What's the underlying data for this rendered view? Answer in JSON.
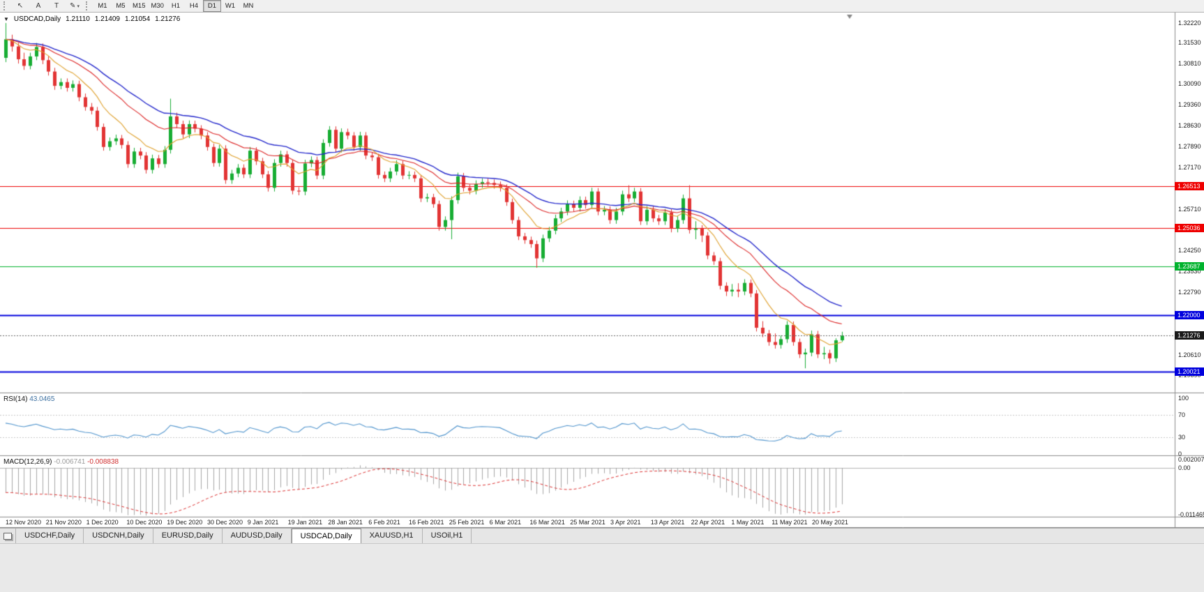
{
  "ui": {
    "collapse_glyph": "▼"
  },
  "toolbar": {
    "tools": [
      {
        "name": "cursor-tool",
        "glyph": "↖"
      },
      {
        "name": "text-label-tool",
        "glyph": "A"
      },
      {
        "name": "text-tool",
        "glyph": "T"
      },
      {
        "name": "drawing-tools",
        "glyph": "✎",
        "caret": "▾"
      }
    ],
    "timeframes": [
      "M1",
      "M5",
      "M15",
      "M30",
      "H1",
      "H4",
      "D1",
      "W1",
      "MN"
    ],
    "active_timeframe": "D1"
  },
  "chart": {
    "symbol_period": "USDCAD,Daily",
    "ohlc": {
      "open": "1.21110",
      "high": "1.21409",
      "low": "1.21054",
      "close": "1.21276"
    },
    "current_price": 1.21276,
    "price_axis_labels": [
      {
        "text": "1.32220",
        "price": 1.3222
      },
      {
        "text": "1.31530",
        "price": 1.3153
      },
      {
        "text": "1.30810",
        "price": 1.3081
      },
      {
        "text": "1.30090",
        "price": 1.3009
      },
      {
        "text": "1.29360",
        "price": 1.2936
      },
      {
        "text": "1.28630",
        "price": 1.2863
      },
      {
        "text": "1.27890",
        "price": 1.2789
      },
      {
        "text": "1.27170",
        "price": 1.2717
      },
      {
        "text": "1.25710",
        "price": 1.2571
      },
      {
        "text": "1.24250",
        "price": 1.2425
      },
      {
        "text": "1.23530",
        "price": 1.2353
      },
      {
        "text": "1.22790",
        "price": 1.2279
      },
      {
        "text": "1.20610",
        "price": 1.2061
      },
      {
        "text": "1.19890",
        "price": 1.1989
      }
    ],
    "price_badges": [
      {
        "text": "1.26513",
        "price": 1.26513,
        "color": "#ee0000",
        "current": false
      },
      {
        "text": "1.25036",
        "price": 1.25036,
        "color": "#ee0000",
        "current": false
      },
      {
        "text": "1.23687",
        "price": 1.23687,
        "color": "#00b22d",
        "current": false
      },
      {
        "text": "1.22000",
        "price": 1.22,
        "color": "#0000dd",
        "current": false
      },
      {
        "text": "1.21276",
        "price": 1.21276,
        "color": "#1a1a1a",
        "current": true
      },
      {
        "text": "1.20021",
        "price": 1.20021,
        "color": "#0000dd",
        "current": false
      }
    ],
    "hlines": [
      {
        "price": 1.26513,
        "color": "#ee0000",
        "width": 1
      },
      {
        "price": 1.25036,
        "color": "#ee0000",
        "width": 1
      },
      {
        "price": 1.23687,
        "color": "#00b22d",
        "width": 1
      },
      {
        "price": 1.22,
        "color": "#0000dd",
        "width": 2
      },
      {
        "price": 1.20021,
        "color": "#0000dd",
        "width": 2
      }
    ],
    "dates": [
      "12 Nov 2020",
      "21 Nov 2020",
      "1 Dec 2020",
      "10 Dec 2020",
      "19 Dec 2020",
      "30 Dec 2020",
      "9 Jan 2021",
      "19 Jan 2021",
      "28 Jan 2021",
      "6 Feb 2021",
      "16 Feb 2021",
      "25 Feb 2021",
      "6 Mar 2021",
      "16 Mar 2021",
      "25 Mar 2021",
      "3 Apr 2021",
      "13 Apr 2021",
      "22 Apr 2021",
      "1 May 2021",
      "11 May 2021",
      "20 May 2021"
    ]
  },
  "rsi": {
    "name": "RSI(14)",
    "value": "43.0465",
    "period": 14,
    "axis": [
      {
        "text": "100",
        "v": 100
      },
      {
        "text": "70",
        "v": 70
      },
      {
        "text": "30",
        "v": 30
      },
      {
        "text": "0",
        "v": 0
      }
    ],
    "levels": [
      70,
      30
    ]
  },
  "macd": {
    "name": "MACD(12,26,9)",
    "main_value": "-0.006741",
    "signal_value": "-0.008838",
    "fast": 12,
    "slow": 26,
    "signal": 9,
    "axis": [
      {
        "text": "0.0020074",
        "v": 0.0020074
      },
      {
        "text": "0.00",
        "v": 0
      },
      {
        "text": "-0.0114652",
        "v": -0.0114652
      }
    ]
  },
  "tabs": {
    "items": [
      "USDCHF,Daily",
      "USDCNH,Daily",
      "EURUSD,Daily",
      "AUDUSD,Daily",
      "USDCAD,Daily",
      "XAUUSD,H1",
      "USOil,H1"
    ],
    "active": "USDCAD,Daily"
  },
  "colors": {
    "bull": "#17ad33",
    "bear": "#e23434",
    "ma_fast": "#dfa02b",
    "ma_mid": "#dd2424",
    "ma_slow": "#2428cc",
    "rsi": "#4f94cd",
    "macd_hist": "#a6a6a6",
    "macd_signal": "#dd3030",
    "current_line": "#666666",
    "level_dotted": "#c8c8c8",
    "separator": "#8c8c8c",
    "shift_marker": "#888888"
  },
  "chart_data": {
    "type": "candlestick",
    "symbol": "USDCAD",
    "timeframe": "Daily",
    "ylim": [
      1.1928,
      1.32586
    ],
    "current_ohlc": [
      1.2111,
      1.21409,
      1.21054,
      1.21276
    ],
    "rsi_current": 43.0465,
    "macd_current": [
      -0.006741,
      -0.008838
    ],
    "moving_averages": [
      {
        "period": 30,
        "method": "ema",
        "color": "#2428cc",
        "name": "slow-ma"
      },
      {
        "period": 20,
        "method": "ema",
        "color": "#dd2424",
        "name": "mid-ma"
      },
      {
        "period": 9,
        "method": "ema",
        "color": "#dfa02b",
        "name": "fast-ma"
      }
    ],
    "candles": [
      [
        1.31,
        1.3222,
        1.3085,
        1.3165
      ],
      [
        1.3165,
        1.3181,
        1.3122,
        1.314
      ],
      [
        1.314,
        1.3152,
        1.308,
        1.3095
      ],
      [
        1.3095,
        1.3118,
        1.3058,
        1.3072
      ],
      [
        1.3072,
        1.3118,
        1.306,
        1.3105
      ],
      [
        1.3105,
        1.3152,
        1.3092,
        1.3138
      ],
      [
        1.3138,
        1.315,
        1.3078,
        1.3092
      ],
      [
        1.3092,
        1.3105,
        1.3038,
        1.3052
      ],
      [
        1.3052,
        1.3065,
        1.2988,
        1.3002
      ],
      [
        1.3002,
        1.3028,
        1.299,
        1.3015
      ],
      [
        1.3015,
        1.3028,
        1.2982,
        1.2995
      ],
      [
        1.2995,
        1.3021,
        1.2982,
        1.3008
      ],
      [
        1.3008,
        1.302,
        1.2948,
        1.2962
      ],
      [
        1.2962,
        1.2975,
        1.2915,
        1.2928
      ],
      [
        1.2928,
        1.2942,
        1.2902,
        1.2915
      ],
      [
        1.2915,
        1.2928,
        1.2845,
        1.2858
      ],
      [
        1.2858,
        1.287,
        1.2775,
        1.2788
      ],
      [
        1.2788,
        1.2821,
        1.2775,
        1.2808
      ],
      [
        1.2808,
        1.2831,
        1.2795,
        1.2818
      ],
      [
        1.2818,
        1.283,
        1.2782,
        1.2795
      ],
      [
        1.2795,
        1.2808,
        1.2715,
        1.2728
      ],
      [
        1.2728,
        1.2785,
        1.2715,
        1.2772
      ],
      [
        1.2772,
        1.2785,
        1.2745,
        1.2758
      ],
      [
        1.2758,
        1.277,
        1.2695,
        1.2708
      ],
      [
        1.2708,
        1.2761,
        1.2695,
        1.2748
      ],
      [
        1.2748,
        1.276,
        1.2715,
        1.2728
      ],
      [
        1.2728,
        1.2791,
        1.2715,
        1.2778
      ],
      [
        1.2778,
        1.2957,
        1.2765,
        1.2895
      ],
      [
        1.2895,
        1.2908,
        1.2855,
        1.2868
      ],
      [
        1.2868,
        1.288,
        1.2819,
        1.2832
      ],
      [
        1.2832,
        1.2881,
        1.2819,
        1.2868
      ],
      [
        1.2868,
        1.288,
        1.2839,
        1.2852
      ],
      [
        1.2852,
        1.2864,
        1.2815,
        1.2828
      ],
      [
        1.2828,
        1.284,
        1.2775,
        1.2788
      ],
      [
        1.2788,
        1.28,
        1.2719,
        1.2732
      ],
      [
        1.2732,
        1.2795,
        1.2719,
        1.2782
      ],
      [
        1.2782,
        1.2794,
        1.2659,
        1.2672
      ],
      [
        1.2672,
        1.2708,
        1.2659,
        1.2695
      ],
      [
        1.2695,
        1.2728,
        1.2682,
        1.2715
      ],
      [
        1.2715,
        1.2727,
        1.2679,
        1.2692
      ],
      [
        1.2692,
        1.2788,
        1.2679,
        1.2775
      ],
      [
        1.2775,
        1.2787,
        1.2725,
        1.2738
      ],
      [
        1.2738,
        1.275,
        1.2679,
        1.2692
      ],
      [
        1.2692,
        1.2704,
        1.2632,
        1.2645
      ],
      [
        1.2645,
        1.2745,
        1.2632,
        1.2732
      ],
      [
        1.2732,
        1.2775,
        1.2719,
        1.2762
      ],
      [
        1.2762,
        1.2774,
        1.2719,
        1.2732
      ],
      [
        1.2732,
        1.2744,
        1.2622,
        1.2635
      ],
      [
        1.2635,
        1.2647,
        1.2619,
        1.2632
      ],
      [
        1.2632,
        1.2743,
        1.2619,
        1.273
      ],
      [
        1.273,
        1.2755,
        1.2717,
        1.2742
      ],
      [
        1.2742,
        1.2754,
        1.2675,
        1.2688
      ],
      [
        1.2688,
        1.2815,
        1.2675,
        1.2802
      ],
      [
        1.2802,
        1.2861,
        1.2789,
        1.2848
      ],
      [
        1.2848,
        1.286,
        1.2769,
        1.2782
      ],
      [
        1.2782,
        1.2853,
        1.2769,
        1.284
      ],
      [
        1.284,
        1.2852,
        1.2815,
        1.2828
      ],
      [
        1.2828,
        1.284,
        1.2775,
        1.2788
      ],
      [
        1.2788,
        1.2841,
        1.2775,
        1.2828
      ],
      [
        1.2828,
        1.284,
        1.2745,
        1.2758
      ],
      [
        1.2758,
        1.277,
        1.2739,
        1.2752
      ],
      [
        1.2752,
        1.2764,
        1.2677,
        1.269
      ],
      [
        1.269,
        1.2702,
        1.2665,
        1.2678
      ],
      [
        1.2678,
        1.2715,
        1.2665,
        1.2702
      ],
      [
        1.2702,
        1.2741,
        1.2689,
        1.2728
      ],
      [
        1.2728,
        1.274,
        1.2675,
        1.2688
      ],
      [
        1.2688,
        1.2703,
        1.2675,
        1.269
      ],
      [
        1.269,
        1.2702,
        1.2665,
        1.2678
      ],
      [
        1.2678,
        1.269,
        1.2595,
        1.2608
      ],
      [
        1.2608,
        1.2625,
        1.2595,
        1.2612
      ],
      [
        1.2612,
        1.2624,
        1.2575,
        1.2588
      ],
      [
        1.2588,
        1.26,
        1.2495,
        1.2508
      ],
      [
        1.2508,
        1.2545,
        1.2495,
        1.2532
      ],
      [
        1.2532,
        1.2615,
        1.2465,
        1.2602
      ],
      [
        1.2602,
        1.2698,
        1.2589,
        1.2685
      ],
      [
        1.2685,
        1.2697,
        1.2632,
        1.2645
      ],
      [
        1.2645,
        1.2657,
        1.2622,
        1.2635
      ],
      [
        1.2635,
        1.2671,
        1.2622,
        1.2658
      ],
      [
        1.2658,
        1.2678,
        1.2645,
        1.2665
      ],
      [
        1.2665,
        1.2677,
        1.2649,
        1.2662
      ],
      [
        1.2662,
        1.2674,
        1.2642,
        1.2655
      ],
      [
        1.2655,
        1.2667,
        1.2632,
        1.2645
      ],
      [
        1.2645,
        1.2657,
        1.2582,
        1.2595
      ],
      [
        1.2595,
        1.2607,
        1.2519,
        1.2532
      ],
      [
        1.2532,
        1.2544,
        1.2462,
        1.2475
      ],
      [
        1.2475,
        1.2487,
        1.2449,
        1.2462
      ],
      [
        1.2462,
        1.2474,
        1.2435,
        1.2448
      ],
      [
        1.2448,
        1.246,
        1.2365,
        1.2398
      ],
      [
        1.2398,
        1.2481,
        1.2385,
        1.2468
      ],
      [
        1.2468,
        1.2508,
        1.2455,
        1.2495
      ],
      [
        1.2495,
        1.2551,
        1.2482,
        1.2538
      ],
      [
        1.2538,
        1.2575,
        1.2525,
        1.2562
      ],
      [
        1.2562,
        1.2601,
        1.2549,
        1.2588
      ],
      [
        1.2588,
        1.26,
        1.2562,
        1.2575
      ],
      [
        1.2575,
        1.2615,
        1.2562,
        1.2602
      ],
      [
        1.2602,
        1.2614,
        1.2572,
        1.2585
      ],
      [
        1.2585,
        1.2645,
        1.2572,
        1.2632
      ],
      [
        1.2632,
        1.2644,
        1.2549,
        1.2562
      ],
      [
        1.2562,
        1.2581,
        1.2549,
        1.2568
      ],
      [
        1.2568,
        1.258,
        1.2519,
        1.2532
      ],
      [
        1.2532,
        1.2575,
        1.2519,
        1.2562
      ],
      [
        1.2562,
        1.2635,
        1.2549,
        1.2622
      ],
      [
        1.2622,
        1.2654,
        1.2595,
        1.2608
      ],
      [
        1.2608,
        1.2645,
        1.2595,
        1.2632
      ],
      [
        1.2632,
        1.2644,
        1.2515,
        1.2528
      ],
      [
        1.2528,
        1.2581,
        1.2515,
        1.2568
      ],
      [
        1.2568,
        1.258,
        1.2525,
        1.2538
      ],
      [
        1.2538,
        1.255,
        1.2515,
        1.2528
      ],
      [
        1.2528,
        1.2571,
        1.2515,
        1.2558
      ],
      [
        1.2558,
        1.257,
        1.2489,
        1.2502
      ],
      [
        1.2502,
        1.2545,
        1.2489,
        1.2532
      ],
      [
        1.2532,
        1.2621,
        1.2519,
        1.2608
      ],
      [
        1.2608,
        1.2654,
        1.2485,
        1.2498
      ],
      [
        1.2498,
        1.2528,
        1.2465,
        1.2502
      ],
      [
        1.2502,
        1.2514,
        1.2455,
        1.2478
      ],
      [
        1.2478,
        1.249,
        1.2395,
        1.2408
      ],
      [
        1.2408,
        1.242,
        1.2375,
        1.2388
      ],
      [
        1.2388,
        1.24,
        1.2289,
        1.2302
      ],
      [
        1.2302,
        1.2314,
        1.2266,
        1.2282
      ],
      [
        1.2282,
        1.2308,
        1.2265,
        1.2288
      ],
      [
        1.2288,
        1.2311,
        1.2262,
        1.2282
      ],
      [
        1.2282,
        1.2325,
        1.2269,
        1.2312
      ],
      [
        1.2312,
        1.2324,
        1.2262,
        1.2275
      ],
      [
        1.2275,
        1.2287,
        1.2142,
        1.2155
      ],
      [
        1.2155,
        1.2178,
        1.2122,
        1.2135
      ],
      [
        1.2135,
        1.2147,
        1.2092,
        1.2105
      ],
      [
        1.2105,
        1.2135,
        1.2082,
        1.2095
      ],
      [
        1.2095,
        1.2128,
        1.2082,
        1.2115
      ],
      [
        1.2115,
        1.2178,
        1.2102,
        1.2165
      ],
      [
        1.2165,
        1.2177,
        1.2092,
        1.2105
      ],
      [
        1.2105,
        1.2117,
        1.2049,
        1.2062
      ],
      [
        1.2062,
        1.2082,
        1.2013,
        1.2068
      ],
      [
        1.2068,
        1.2145,
        1.2055,
        1.2132
      ],
      [
        1.2132,
        1.2144,
        1.2049,
        1.2062
      ],
      [
        1.2062,
        1.2088,
        1.2045,
        1.2066
      ],
      [
        1.2066,
        1.2078,
        1.2029,
        1.2048
      ],
      [
        1.2048,
        1.2118,
        1.2035,
        1.2111
      ],
      [
        1.2111,
        1.21409,
        1.21054,
        1.21276
      ]
    ]
  }
}
